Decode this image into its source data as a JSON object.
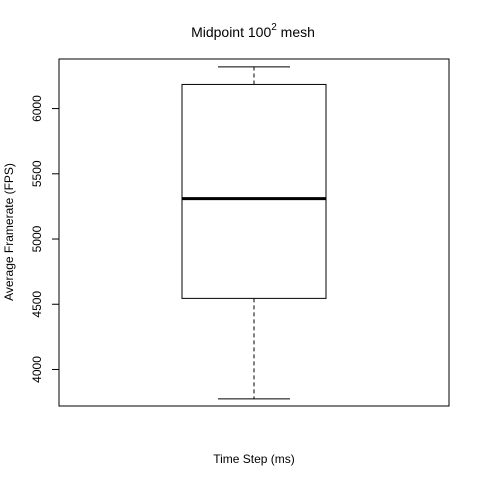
{
  "chart_data": {
    "type": "boxplot",
    "title": {
      "main": "Midpoint  100",
      "superscript": "2",
      "suffix": "  mesh"
    },
    "xlabel": "Time Step (ms)",
    "ylabel": "Average Framerate (FPS)",
    "y_ticks": [
      4000,
      4500,
      5000,
      5500,
      6000
    ],
    "ylim": [
      3720,
      6380
    ],
    "box": {
      "whisker_low": 3775,
      "q1": 4545,
      "median": 5310,
      "q3": 6185,
      "whisker_high": 6320
    },
    "colors": {
      "line": "#000000",
      "background": "#ffffff"
    }
  }
}
